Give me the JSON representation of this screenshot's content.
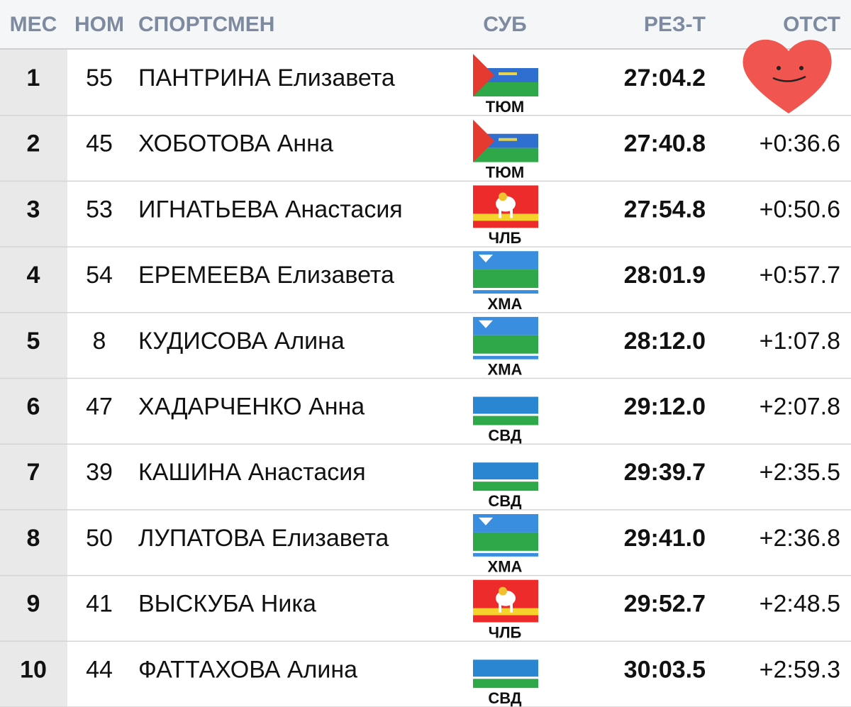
{
  "header": [
    "МЕС",
    "НОМ",
    "СПОРТСМЕН",
    "СУБ",
    "РЕЗ-Т",
    "ОТСТ"
  ],
  "table": {
    "rows": [
      {
        "rank": "1",
        "bib": "55",
        "name": "ПАНТРИНА Елизавета",
        "region": "ТЮМ",
        "result": "27:04.2"
      },
      {
        "rank": "2",
        "bib": "45",
        "name": "ХОБОТОВА Анна",
        "region": "ТЮМ",
        "result": "27:40.8",
        "gap": "+0:36.6"
      },
      {
        "rank": "3",
        "bib": "53",
        "name": "ИГНАТЬЕВА Анастасия",
        "region": "ЧЛБ",
        "result": "27:54.8",
        "gap": "+0:50.6"
      },
      {
        "rank": "4",
        "bib": "54",
        "name": "ЕРЕМЕЕВА Елизавета",
        "region": "ХМА",
        "result": "28:01.9",
        "gap": "+0:57.7"
      },
      {
        "rank": "5",
        "bib": "8",
        "name": "КУДИСОВА Алина",
        "region": "ХМА",
        "result": "28:12.0",
        "gap": "+1:07.8"
      },
      {
        "rank": "6",
        "bib": "47",
        "name": "ХАДАРЧЕНКО Анна",
        "region": "СВД",
        "result": "29:12.0",
        "gap": "+2:07.8"
      },
      {
        "rank": "7",
        "bib": "39",
        "name": "КАШИНА Анастасия",
        "region": "СВД",
        "result": "29:39.7",
        "gap": "+2:35.5"
      },
      {
        "rank": "8",
        "bib": "50",
        "name": "ЛУПАТОВА Елизавета",
        "region": "ХМА",
        "result": "29:41.0",
        "gap": "+2:36.8"
      },
      {
        "rank": "9",
        "bib": "41",
        "name": "ВЫСКУБА Ника",
        "region": "ЧЛБ",
        "result": "29:52.7",
        "gap": "+2:48.5"
      },
      {
        "rank": "10",
        "bib": "44",
        "name": "ФАТТАХОВА Алина",
        "region": "СВД",
        "result": "30:03.5",
        "gap": "+2:59.3"
      }
    ]
  }
}
